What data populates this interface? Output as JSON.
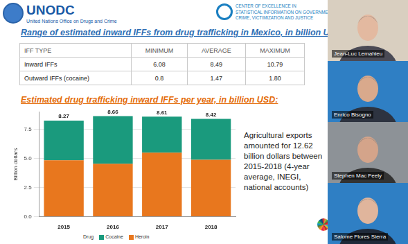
{
  "header": {
    "logo_text": "UNODC",
    "organization": "United Nations Office on Drugs and Crime",
    "center": [
      "CENTER OF EXCELLENCE IN",
      "STATISTICAL INFORMATION ON GOVERNMENT,",
      "CRIME, VICTIMIZATION AND JUSTICE"
    ]
  },
  "title": "Range of estimated inward IFFs from drug trafficking in Mexico, in billion USD",
  "table": {
    "header": [
      "IFF TYPE",
      "MINIMUM",
      "AVERAGE",
      "MAXIMUM"
    ],
    "rows": [
      [
        "Inward IFFs",
        "6.08",
        "8.49",
        "10.79"
      ],
      [
        "Outward IFFs (cocaine)",
        "0.8",
        "1.47",
        "1.80"
      ]
    ]
  },
  "chart_data": {
    "type": "bar",
    "title": "Estimated drug trafficking inward IFFs per year, in billion USD:",
    "y_label": "Billion dollars",
    "legend_title": "Drug",
    "categories": [
      "2015",
      "2016",
      "2017",
      "2018"
    ],
    "series": [
      {
        "name": "Cocaine",
        "color": "#1a9a7d",
        "values": [
          3.42,
          4.11,
          3.11,
          3.52
        ]
      },
      {
        "name": "Heroin",
        "color": "#e8771e",
        "values": [
          4.85,
          4.55,
          5.5,
          4.9
        ]
      }
    ],
    "totals": [
      8.27,
      8.66,
      8.61,
      8.42
    ],
    "stacked": true,
    "ylim": [
      0,
      9
    ],
    "yticks": [
      {
        "value": 0,
        "label": "0.0"
      },
      2.5,
      {
        "value": 5,
        "label": "5.0"
      },
      7.5
    ],
    "grid": true,
    "legend": "bottom"
  },
  "note": "Agricultural exports amounted for 12.62 billion dollars between 2015-2018 (4-year average, INEGI, national accounts)",
  "participants": [
    "Jean-Luc Lemahieu",
    "Enrico Bisogno",
    "Stephen Mac Feely",
    "Salome Flores Sierra"
  ]
}
